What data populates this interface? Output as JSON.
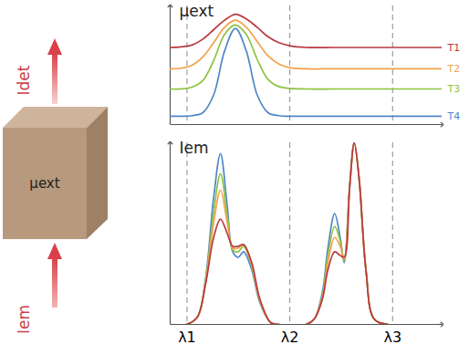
{
  "chart_data": [
    {
      "type": "line",
      "y_label": "μext",
      "legend": "right",
      "grid": true,
      "tick_labels": false,
      "xlim": [
        0,
        100
      ],
      "ylim": [
        0,
        100
      ],
      "xticks": [
        {
          "value": 6.2,
          "label": "λ1"
        },
        {
          "value": 44,
          "label": "λ2"
        },
        {
          "value": 81.8,
          "label": "λ3"
        }
      ],
      "x": [
        0,
        4,
        8,
        12,
        16,
        20,
        24,
        28,
        32,
        36,
        40,
        44,
        50,
        60,
        70,
        80,
        90,
        100
      ],
      "series": [
        {
          "name": "T1",
          "color": "#b83a3f",
          "values": [
            65,
            65.5,
            67,
            72,
            80,
            88,
            93,
            89,
            82,
            74,
            69,
            66.5,
            65,
            65,
            65,
            65,
            65,
            65
          ]
        },
        {
          "name": "T2",
          "color": "#f2a24e",
          "values": [
            47,
            47.5,
            50,
            57,
            69,
            82,
            88,
            82,
            70,
            58,
            51,
            48,
            47,
            47,
            47,
            47,
            47,
            47
          ]
        },
        {
          "name": "T3",
          "color": "#8cc43f",
          "values": [
            30,
            30,
            31.5,
            37,
            54,
            76,
            84,
            76,
            55,
            38,
            32,
            30.5,
            30,
            30,
            30,
            30,
            30,
            30
          ]
        },
        {
          "name": "T4",
          "color": "#4f86c6",
          "values": [
            7,
            7,
            7.5,
            10,
            25,
            62,
            81,
            62,
            25,
            10,
            7.5,
            7,
            7,
            7,
            7,
            7,
            7,
            7
          ]
        }
      ]
    },
    {
      "type": "line",
      "y_label": "Iem",
      "grid": true,
      "tick_labels": "x",
      "xlim": [
        0,
        100
      ],
      "ylim": [
        0,
        100
      ],
      "xticks": [
        {
          "value": 6.2,
          "label": "λ1"
        },
        {
          "value": 44,
          "label": "λ2"
        },
        {
          "value": 81.8,
          "label": "λ3"
        }
      ],
      "x": [
        0,
        6,
        10,
        13,
        16,
        18.5,
        21,
        23,
        25,
        27,
        30,
        33,
        37,
        40,
        50,
        53,
        56,
        58,
        60.5,
        62.5,
        64,
        66,
        67.7,
        69.5,
        72,
        75,
        80,
        100
      ],
      "series": [
        {
          "name": "T1",
          "color": "#b83a3f",
          "values": [
            0,
            0,
            4,
            22,
            48,
            58,
            50,
            43,
            43,
            44,
            34,
            14,
            1,
            0,
            0,
            3,
            14,
            30,
            40,
            38,
            37,
            76,
            100,
            80,
            30,
            3,
            0,
            0
          ]
        },
        {
          "name": "T2",
          "color": "#f2a24e",
          "values": [
            0,
            0,
            4,
            23,
            56,
            74,
            56,
            42,
            42,
            44,
            33,
            13,
            1,
            0,
            0,
            3,
            15,
            34,
            48,
            43,
            36,
            75,
            100,
            80,
            30,
            3,
            0,
            0
          ]
        },
        {
          "name": "T3",
          "color": "#8cc43f",
          "values": [
            0,
            0,
            4,
            24,
            62,
            83,
            60,
            41,
            40,
            43,
            32,
            13,
            1,
            0,
            0,
            3,
            16,
            38,
            54,
            46,
            35,
            75,
            100,
            80,
            30,
            3,
            0,
            0
          ]
        },
        {
          "name": "T4",
          "color": "#4f86c6",
          "values": [
            0,
            0,
            4,
            25,
            70,
            94,
            65,
            40,
            37,
            40,
            30,
            12,
            1,
            0,
            0,
            3,
            18,
            42,
            61,
            48,
            34,
            75,
            100,
            80,
            30,
            3,
            0,
            0
          ]
        }
      ]
    }
  ],
  "diagram": {
    "detected": "Idet",
    "cube": "μext",
    "incident": "Iem"
  }
}
